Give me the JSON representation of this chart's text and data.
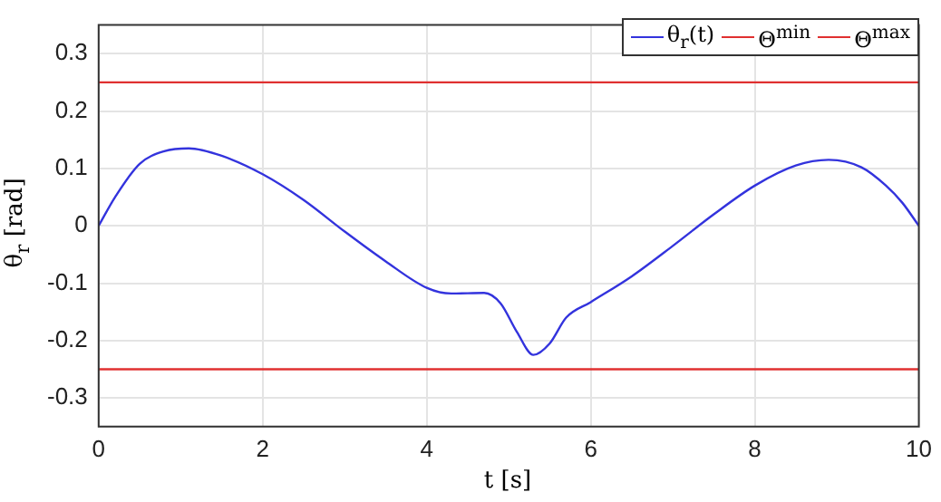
{
  "chart_data": {
    "type": "line",
    "xlabel": "t [s]",
    "ylabel": "θ$_{r}$ [rad]",
    "xlim": [
      0,
      10
    ],
    "xticks": [
      0,
      2,
      4,
      6,
      8,
      10
    ],
    "ylim": [
      -0.35,
      0.35
    ],
    "yticks": [
      -0.3,
      -0.2,
      -0.1,
      0,
      0.1,
      0.2,
      0.3
    ],
    "grid": true,
    "legend": "top right",
    "marker": "none",
    "line_style": "solid",
    "series": [
      {
        "name": "θ$_{r}$(t)",
        "color": "#3333dd",
        "x": [
          0,
          0.2,
          0.5,
          0.8,
          1.1,
          1.5,
          2,
          2.5,
          3,
          3.5,
          4,
          4.3,
          4.7,
          4.9,
          5.1,
          5.3,
          5.5,
          5.7,
          6,
          6.5,
          7,
          7.5,
          8,
          8.5,
          8.9,
          9.3,
          9.6,
          9.8,
          10
        ],
        "values": [
          0,
          0.05,
          0.108,
          0.13,
          0.135,
          0.122,
          0.09,
          0.045,
          -0.01,
          -0.062,
          -0.108,
          -0.118,
          -0.117,
          -0.135,
          -0.185,
          -0.225,
          -0.205,
          -0.16,
          -0.133,
          -0.088,
          -0.035,
          0.02,
          0.07,
          0.105,
          0.115,
          0.102,
          0.07,
          0.04,
          0
        ]
      },
      {
        "name": "Θ$^{min}$",
        "color": "#e03030",
        "x": [
          0,
          10
        ],
        "values": [
          -0.25,
          -0.25
        ]
      },
      {
        "name": "Θ$^{max}$",
        "color": "#e03030",
        "x": [
          0,
          10
        ],
        "values": [
          0.25,
          0.25
        ]
      }
    ]
  }
}
